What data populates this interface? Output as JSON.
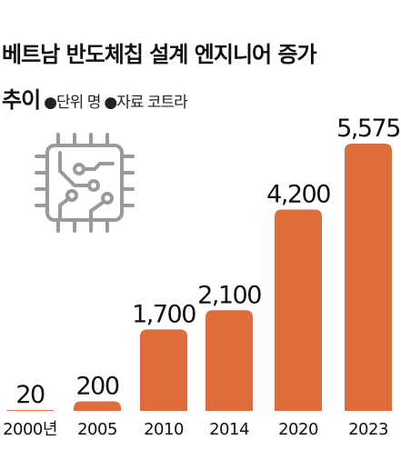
{
  "chart_data": {
    "type": "bar",
    "title": [
      "베트남 반도체칩 설계 엔지니어 증가",
      "추이"
    ],
    "notes": [
      "●단위 명",
      "●자료 코트라"
    ],
    "categories": [
      "2000년",
      "2005",
      "2010",
      "2014",
      "2020",
      "2023"
    ],
    "values": [
      20,
      200,
      1700,
      2100,
      4200,
      5575
    ],
    "value_labels": [
      "20",
      "200",
      "1,700",
      "2,100",
      "4,200",
      "5,575"
    ],
    "color": "#df6d3b"
  }
}
